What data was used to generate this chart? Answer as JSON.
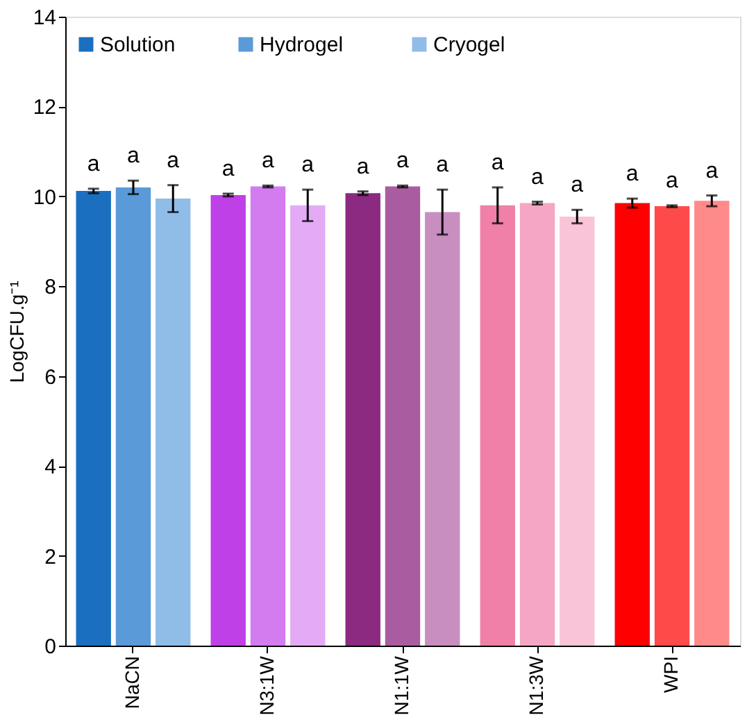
{
  "chart_data": {
    "type": "bar",
    "ylabel": "LogCFU.g⁻¹",
    "categories": [
      "NaCN",
      "N3:1W",
      "N1:1W",
      "N1:3W",
      "WPI"
    ],
    "series": [
      {
        "name": "Solution",
        "color": "#1a6fc0",
        "colors": [
          "#1a6fc0",
          "#c040e8",
          "#8b2a80",
          "#f080a8",
          "#ff0000"
        ],
        "values": [
          10.12,
          10.03,
          10.07,
          9.8,
          9.85
        ],
        "errors": [
          0.05,
          0.03,
          0.04,
          0.4,
          0.1
        ],
        "value_labels": [
          "a",
          "a",
          "a",
          "a",
          "a"
        ]
      },
      {
        "name": "Hydrogel",
        "color": "#5a9ad8",
        "colors": [
          "#5a9ad8",
          "#d27cf0",
          "#aa5ca0",
          "#f5a6c4",
          "#ff4a4a"
        ],
        "values": [
          10.2,
          10.22,
          10.22,
          9.85,
          9.78
        ],
        "errors": [
          0.15,
          0.02,
          0.02,
          0.03,
          0.02
        ],
        "value_labels": [
          "a",
          "a",
          "a",
          "a",
          "a"
        ]
      },
      {
        "name": "Cryogel",
        "color": "#8fbde8",
        "colors": [
          "#8fbde8",
          "#e4aaf6",
          "#c88ec0",
          "#f9c4d8",
          "#ff8a8a"
        ],
        "values": [
          9.95,
          9.8,
          9.65,
          9.55,
          9.9
        ],
        "errors": [
          0.3,
          0.35,
          0.5,
          0.15,
          0.12
        ],
        "value_labels": [
          "a",
          "a",
          "a",
          "a",
          "a"
        ]
      }
    ],
    "ylim": [
      0,
      14
    ],
    "yticks": [
      0,
      2,
      4,
      6,
      8,
      10,
      12,
      14
    ],
    "grid": false,
    "legend": "top left"
  }
}
